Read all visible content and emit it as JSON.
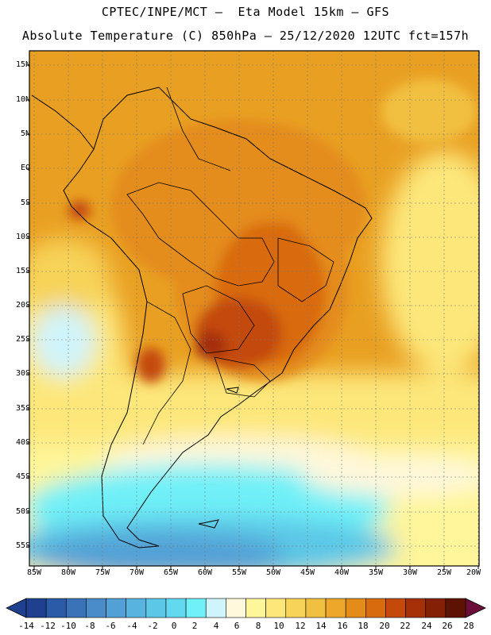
{
  "header": {
    "line1": "CPTEC/INPE/MCT –  Eta Model 15km – GFS",
    "line2": "Absolute Temperature (C) 850hPa – 25/12/2020 12UTC fct=157h"
  },
  "map": {
    "lat_labels": [
      "15N",
      "10N",
      "5N",
      "EQ",
      "5S",
      "10S",
      "15S",
      "20S",
      "25S",
      "30S",
      "35S",
      "40S",
      "45S",
      "50S",
      "55S"
    ],
    "lon_labels": [
      "85W",
      "80W",
      "75W",
      "70W",
      "65W",
      "60W",
      "55W",
      "50W",
      "45W",
      "40W",
      "35W",
      "30W",
      "25W",
      "20W"
    ]
  },
  "legend": {
    "labels": [
      "-14",
      "-12",
      "-10",
      "-8",
      "-6",
      "-4",
      "-2",
      "0",
      "2",
      "4",
      "6",
      "8",
      "10",
      "12",
      "14",
      "16",
      "18",
      "20",
      "22",
      "24",
      "26",
      "28"
    ],
    "colors": [
      "#1f3f8f",
      "#2b5aa6",
      "#3a72b8",
      "#4a8cc9",
      "#52a0d6",
      "#56b4df",
      "#5cc7e6",
      "#62d9ee",
      "#70f0f8",
      "#d0f4fb",
      "#fff8dc",
      "#fff59a",
      "#fde77a",
      "#f7d358",
      "#f2c040",
      "#eda72a",
      "#e48c1a",
      "#d96b0f",
      "#c4490b",
      "#a52f07",
      "#842006",
      "#5e1204"
    ]
  }
}
